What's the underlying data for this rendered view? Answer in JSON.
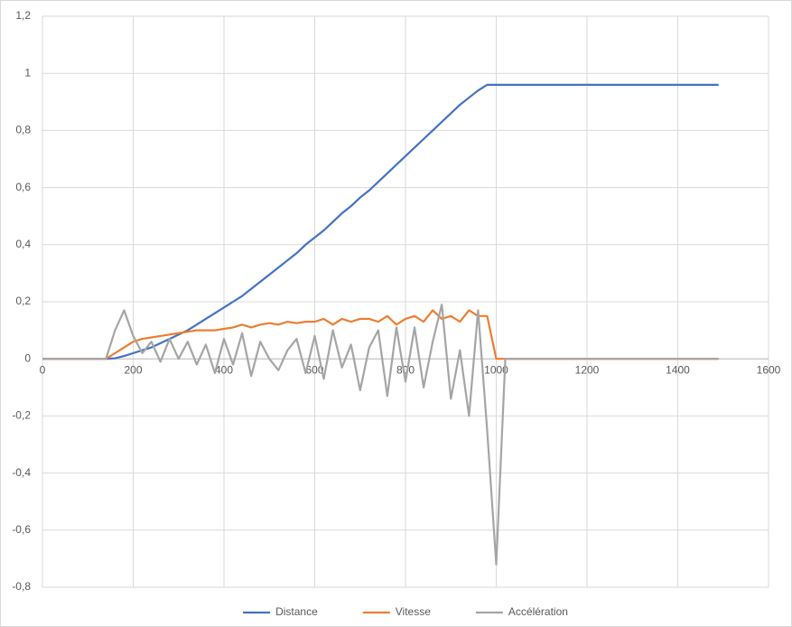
{
  "chart_data": {
    "type": "line",
    "x": [
      0,
      20,
      40,
      60,
      80,
      100,
      120,
      140,
      160,
      180,
      200,
      220,
      240,
      260,
      280,
      300,
      320,
      340,
      360,
      380,
      400,
      420,
      440,
      460,
      480,
      500,
      520,
      540,
      560,
      580,
      600,
      620,
      640,
      660,
      680,
      700,
      720,
      740,
      760,
      780,
      800,
      820,
      840,
      860,
      880,
      900,
      920,
      940,
      960,
      980,
      1000,
      1020,
      1040,
      1100,
      1200,
      1300,
      1400,
      1490
    ],
    "series": [
      {
        "name": "Distance",
        "color": "#4472c4",
        "values": [
          0,
          0,
          0,
          0,
          0,
          0,
          0,
          0,
          0.002,
          0.01,
          0.02,
          0.03,
          0.04,
          0.055,
          0.07,
          0.085,
          0.1,
          0.12,
          0.14,
          0.16,
          0.18,
          0.2,
          0.22,
          0.245,
          0.27,
          0.295,
          0.32,
          0.345,
          0.37,
          0.4,
          0.425,
          0.45,
          0.48,
          0.51,
          0.535,
          0.565,
          0.59,
          0.62,
          0.65,
          0.68,
          0.71,
          0.74,
          0.77,
          0.8,
          0.83,
          0.86,
          0.89,
          0.915,
          0.94,
          0.96,
          0.96,
          0.96,
          0.96,
          0.96,
          0.96,
          0.96,
          0.96,
          0.96
        ]
      },
      {
        "name": "Vitesse",
        "color": "#ed7d31",
        "values": [
          0,
          0,
          0,
          0,
          0,
          0,
          0,
          0,
          0.02,
          0.04,
          0.06,
          0.07,
          0.075,
          0.08,
          0.085,
          0.09,
          0.095,
          0.1,
          0.1,
          0.1,
          0.105,
          0.11,
          0.12,
          0.11,
          0.12,
          0.125,
          0.12,
          0.13,
          0.125,
          0.13,
          0.13,
          0.14,
          0.12,
          0.14,
          0.13,
          0.14,
          0.14,
          0.13,
          0.15,
          0.12,
          0.14,
          0.15,
          0.13,
          0.17,
          0.14,
          0.15,
          0.13,
          0.17,
          0.15,
          0.15,
          0,
          0,
          0,
          0,
          0,
          0,
          0,
          0
        ]
      },
      {
        "name": "Accélération",
        "color": "#a5a5a5",
        "values": [
          0,
          0,
          0,
          0,
          0,
          0,
          0,
          0,
          0.1,
          0.17,
          0.08,
          0.02,
          0.06,
          -0.01,
          0.07,
          0,
          0.06,
          -0.02,
          0.05,
          -0.05,
          0.07,
          -0.02,
          0.09,
          -0.06,
          0.06,
          0,
          -0.04,
          0.03,
          0.07,
          -0.05,
          0.08,
          -0.07,
          0.1,
          -0.03,
          0.05,
          -0.11,
          0.04,
          0.1,
          -0.13,
          0.11,
          -0.08,
          0.11,
          -0.1,
          0.06,
          0.19,
          -0.14,
          0.03,
          -0.2,
          0.17,
          -0.25,
          -0.72,
          0,
          0,
          0,
          0,
          0,
          0,
          0
        ]
      }
    ],
    "xlim": [
      0,
      1600
    ],
    "xticks": [
      0,
      200,
      400,
      600,
      800,
      1000,
      1200,
      1400,
      1600
    ],
    "ylim": [
      -0.8,
      1.2
    ],
    "yticks": [
      {
        "value": 1.2,
        "label": "1,2"
      },
      1,
      {
        "value": 0.8,
        "label": "0,8"
      },
      {
        "value": 0.6,
        "label": "0,6"
      },
      {
        "value": 0.4,
        "label": "0,4"
      },
      {
        "value": 0.2,
        "label": "0,2"
      },
      0,
      {
        "value": -0.2,
        "label": "-0,2"
      },
      {
        "value": -0.4,
        "label": "-0,4"
      },
      {
        "value": -0.6,
        "label": "-0,6"
      },
      {
        "value": -0.8,
        "label": "-0,8"
      }
    ],
    "grid": true,
    "legend": "bottom"
  }
}
